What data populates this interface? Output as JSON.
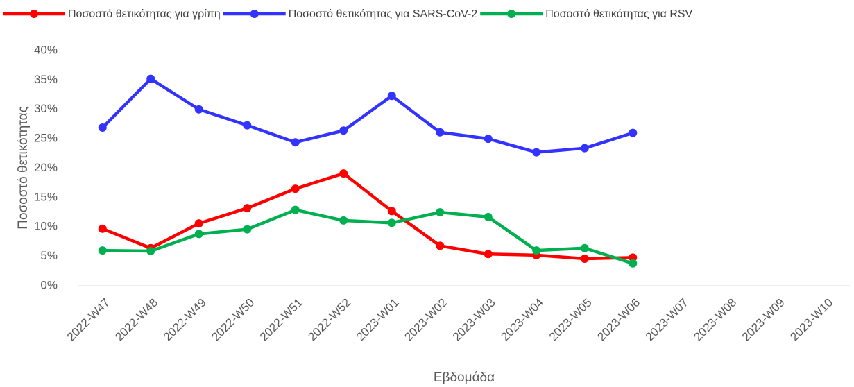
{
  "chart_data": {
    "type": "line",
    "x_label": "Εβδομάδα",
    "y_label": "Ποσοστό θετικότητας",
    "categories": [
      "2022-W47",
      "2022-W48",
      "2022-W49",
      "2022-W50",
      "2022-W51",
      "2022-W52",
      "2023-W01",
      "2023-W02",
      "2023-W03",
      "2023-W04",
      "2023-W05",
      "2023-W06",
      "2023-W07",
      "2023-W08",
      "2023-W09",
      "2023-W10"
    ],
    "series": [
      {
        "name": "Ποσοστό θετικότητας για γρίπη",
        "color": "#ff0000",
        "values": [
          9.7,
          6.4,
          10.6,
          13.2,
          16.5,
          19.1,
          12.7,
          6.8,
          5.4,
          5.2,
          4.6,
          4.8,
          null,
          null,
          null,
          null
        ]
      },
      {
        "name": "Ποσοστό θετικότητας για SARS-CoV-2",
        "color": "#3333ff",
        "values": [
          26.9,
          35.2,
          30.0,
          27.3,
          24.4,
          26.4,
          32.3,
          26.1,
          25.0,
          22.7,
          23.4,
          26.0,
          null,
          null,
          null,
          null
        ]
      },
      {
        "name": "Ποσοστό θετικότητας για RSV",
        "color": "#00b050",
        "values": [
          6.0,
          5.9,
          8.8,
          9.6,
          12.9,
          11.1,
          10.7,
          12.5,
          11.7,
          6.0,
          6.4,
          3.8,
          null,
          null,
          null,
          null
        ]
      }
    ],
    "ylim": [
      0,
      40
    ],
    "yticks": [
      {
        "value": 0,
        "label": "0%"
      },
      {
        "value": 5,
        "label": "5%"
      },
      {
        "value": 10,
        "label": "10%"
      },
      {
        "value": 15,
        "label": "15%"
      },
      {
        "value": 20,
        "label": "20%"
      },
      {
        "value": 25,
        "label": "25%"
      },
      {
        "value": 30,
        "label": "30%"
      },
      {
        "value": 35,
        "label": "35%"
      },
      {
        "value": 40,
        "label": "40%"
      }
    ],
    "grid": false,
    "legend": "top"
  }
}
